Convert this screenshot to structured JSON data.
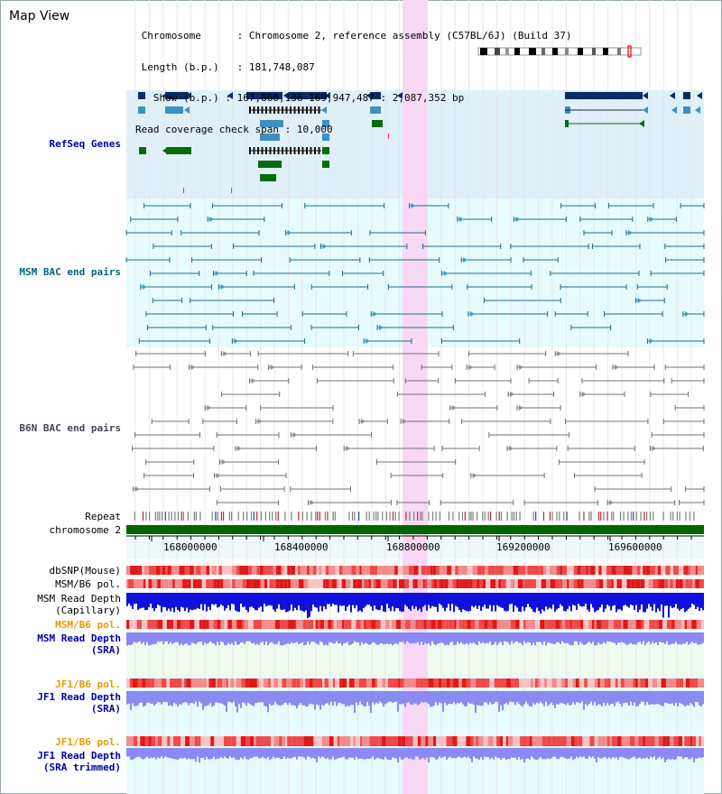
{
  "page": {
    "title": "Map View"
  },
  "info": {
    "chromosome_label": "Chromosome",
    "chromosome_value": "Chromosome 2, reference assembly (C57BL/6J) (Build 37)",
    "length_label": "Length (b.p.)",
    "length_value": "181,748,087",
    "show_label": "Show (b.p.)",
    "show_value": "167,860,136-169,947,487 : 2,087,352 bp",
    "coverage_label": "Read coverage check span",
    "coverage_value": "10,000"
  },
  "tracks": {
    "refseq": "RefSeq Genes",
    "msm_bac": "MSM BAC end pairs",
    "b6n_bac": "B6N BAC end pairs",
    "repeat": "Repeat",
    "chromosome": "chromosome 2",
    "dbsnp": "dbSNP(Mouse)",
    "msm_b6_pol_1": "MSM/B6 pol.",
    "msm_read_depth_cap_1": "MSM Read Depth",
    "msm_read_depth_cap_2": "(Capillary)",
    "msm_b6_pol_2": "MSM/B6 pol.",
    "msm_read_depth_sra_1": "MSM Read Depth",
    "msm_read_depth_sra_2": "(SRA)",
    "jf1_b6_pol_1": "JF1/B6 pol.",
    "jf1_read_depth_sra_1": "JF1 Read Depth",
    "jf1_read_depth_sra_2": "(SRA)",
    "jf1_b6_pol_2": "JF1/B6 pol.",
    "jf1_read_depth_trim_1": "JF1 Read Depth",
    "jf1_read_depth_trim_2": "(SRA trimmed)"
  },
  "axis": {
    "ticks": [
      "168000000",
      "168400000",
      "168800000",
      "169200000",
      "169600000"
    ]
  },
  "colors": {
    "refseq_bg": "#dff0f9",
    "msm_bg": "#e6fbfb",
    "highlight": "#f8d8f4",
    "chromosome_bar": "#006400",
    "depth_dark": "#1010dd",
    "depth_light": "#8a8af2",
    "snp_red": "#f04848"
  }
}
